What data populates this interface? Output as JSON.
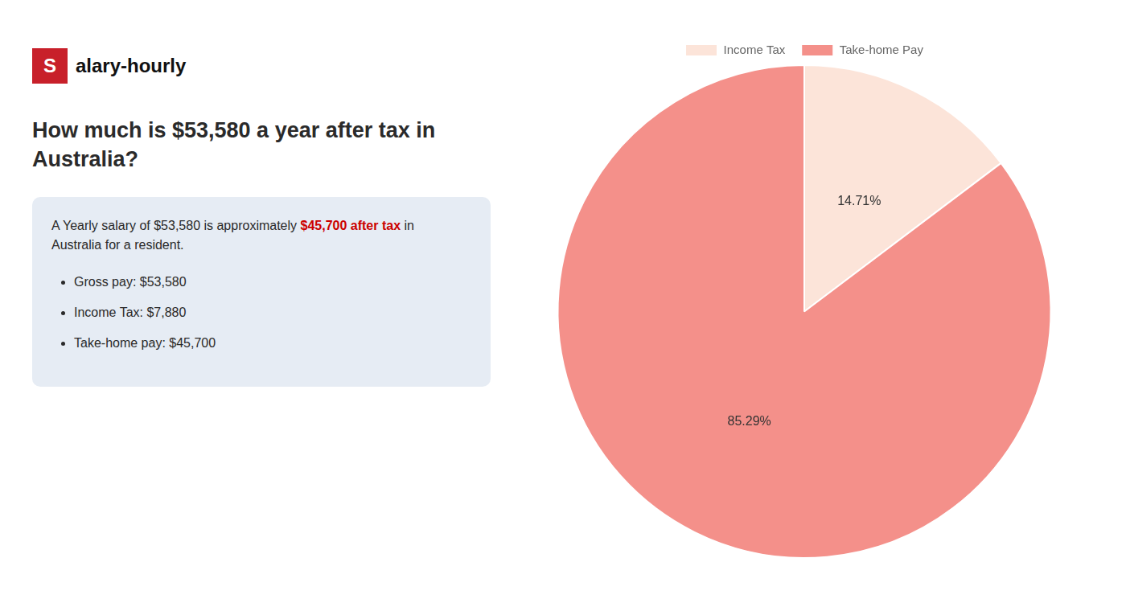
{
  "chart_data": {
    "type": "pie",
    "title": [
      "How much is $53,580 a year after tax in",
      "Australia?"
    ],
    "categories": [
      "Income Tax",
      "Take-home Pay"
    ],
    "values": [
      14.71,
      85.29
    ],
    "value_labels": [
      "14.71%",
      "85.29%"
    ],
    "colors": [
      "#fce4d9",
      "#f4908a"
    ],
    "data_labels": true,
    "legend": "top",
    "annotations": {
      "brand": {
        "mark": "S",
        "name": "alary-hourly",
        "color": "#c8202a"
      },
      "summary": [
        [
          {
            "text": "A Yearly salary of $53,580 is approximately "
          },
          {
            "text": "$45,700 after tax",
            "color": "#cc0000"
          },
          {
            "text": " in"
          }
        ],
        [
          {
            "text": "Australia for a resident."
          }
        ]
      ],
      "bullets": [
        "Gross pay: $53,580",
        "Income Tax: $7,880",
        "Take-home pay: $45,700"
      ]
    }
  }
}
